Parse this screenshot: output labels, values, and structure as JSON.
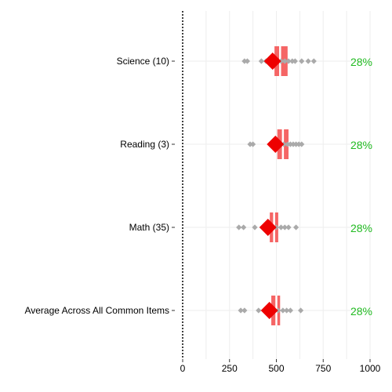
{
  "chart_data": {
    "type": "dot-box",
    "x_ticks": [
      0,
      250,
      500,
      750,
      1000
    ],
    "xlim": [
      0,
      1000
    ],
    "grid": true,
    "colors": {
      "box": "#f56565",
      "mean": "#ee0000",
      "points": "#aaaaaa",
      "percent": "#22bb22",
      "grid": "#eeeeee",
      "axis": "#000000"
    },
    "rows": [
      {
        "label": "Science (10)",
        "box": {
          "q1": 490,
          "median": 520,
          "q3": 560
        },
        "mean": 480,
        "points": [
          330,
          345,
          420,
          445,
          470,
          500,
          525,
          545,
          565,
          585,
          600,
          635,
          670,
          700
        ],
        "percent": "28%"
      },
      {
        "label": "Reading (3)",
        "box": {
          "q1": 505,
          "median": 535,
          "q3": 565
        },
        "mean": 495,
        "points": [
          360,
          375,
          510,
          540,
          560,
          575,
          590,
          605,
          620,
          635
        ],
        "percent": "28%"
      },
      {
        "label": "Math (35)",
        "box": {
          "q1": 465,
          "median": 488,
          "q3": 510
        },
        "mean": 455,
        "points": [
          300,
          325,
          385,
          455,
          480,
          500,
          525,
          545,
          565,
          605
        ],
        "percent": "28%"
      },
      {
        "label": "Average Across All Common Items",
        "box": {
          "q1": 473,
          "median": 500,
          "q3": 520
        },
        "mean": 463,
        "points": [
          310,
          330,
          405,
          460,
          485,
          510,
          535,
          555,
          575,
          630
        ],
        "percent": "28%"
      }
    ]
  }
}
